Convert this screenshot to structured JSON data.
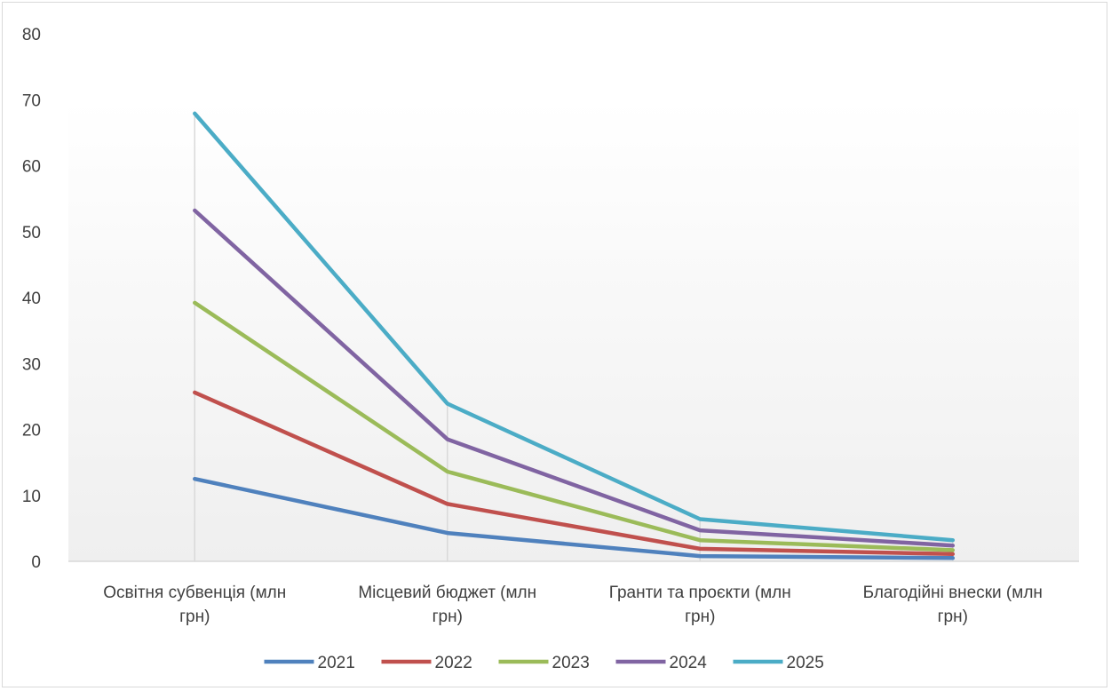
{
  "chart_data": {
    "type": "line",
    "title": "",
    "xlabel": "",
    "ylabel": "",
    "ylim": [
      0,
      80
    ],
    "yticks": [
      "0",
      "10",
      "20",
      "30",
      "40",
      "50",
      "60",
      "70",
      "80"
    ],
    "categories": [
      [
        "Освітня субвенція (млн",
        "грн)"
      ],
      [
        "Місцевий бюджет (млн",
        "грн)"
      ],
      [
        "Гранти та проєкти (млн",
        "грн)"
      ],
      [
        "Благодійні внески (млн",
        "грн)"
      ]
    ],
    "legend_position": "bottom",
    "grid": false,
    "series": [
      {
        "name": "2021",
        "color": "#4f81bd",
        "values": [
          12.5,
          4.3,
          0.8,
          0.5
        ]
      },
      {
        "name": "2022",
        "color": "#c0504d",
        "values": [
          25.6,
          8.7,
          1.9,
          1.1
        ]
      },
      {
        "name": "2023",
        "color": "#9bbb59",
        "values": [
          39.2,
          13.6,
          3.2,
          1.7
        ]
      },
      {
        "name": "2024",
        "color": "#8064a2",
        "values": [
          53.2,
          18.5,
          4.7,
          2.4
        ]
      },
      {
        "name": "2025",
        "color": "#4bacc6",
        "values": [
          67.9,
          23.9,
          6.4,
          3.2
        ]
      }
    ]
  }
}
